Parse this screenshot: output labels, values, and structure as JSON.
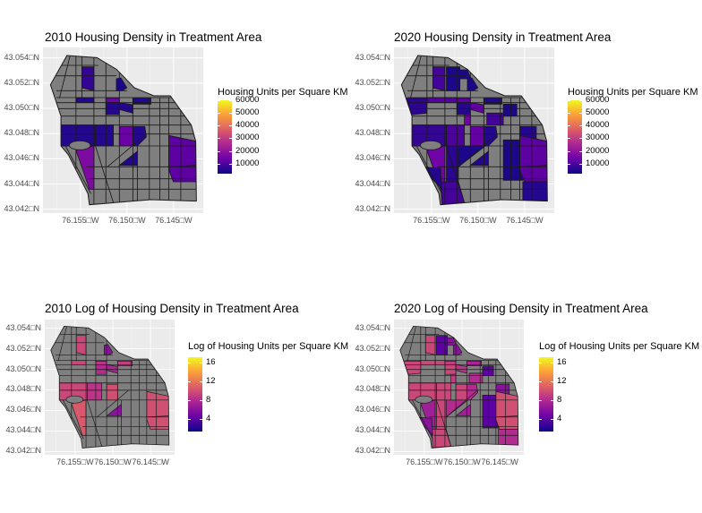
{
  "colors": {
    "region_fill_no_data": "#7f7f7f",
    "panel_background": "#ebebeb",
    "border": "#1a1a1a",
    "palette": "plasma",
    "palette_low": "#0d0887",
    "palette_high": "#f0f921"
  },
  "maps": [
    {
      "title": "2010 Housing Density in Treatment Area",
      "legend_title": "Housing Units per Square KM",
      "legend_ticks": [
        "60000",
        "50000",
        "40000",
        "30000",
        "20000",
        "10000"
      ],
      "legend_tick_values": [
        60000,
        50000,
        40000,
        30000,
        20000,
        10000
      ],
      "legend_range": [
        2100,
        60000
      ],
      "y_ticks": [
        "43.054□N",
        "43.052□N",
        "43.050□N",
        "43.048□N",
        "43.046□N",
        "43.044□N",
        "43.042□N"
      ],
      "x_ticks": [
        "76.155□W",
        "76.150□W",
        "76.145□W"
      ],
      "regions": {
        "r1": 7000,
        "r2": 5000,
        "r3": 15000,
        "r4": 5000,
        "r5": 5000,
        "r6": 5000,
        "r7": 4000,
        "r8a": 5000,
        "r8b": 5000,
        "r9": 14000,
        "r10": 5000,
        "r11": 5000,
        "r12": 17000,
        "r13": 12000
      }
    },
    {
      "title": "2020 Housing Density in Treatment Area",
      "legend_title": "Housing Units per Square KM",
      "legend_ticks": [
        "60000",
        "50000",
        "40000",
        "30000",
        "20000",
        "10000"
      ],
      "legend_tick_values": [
        60000,
        50000,
        40000,
        30000,
        20000,
        10000
      ],
      "legend_range": [
        2100,
        60000
      ],
      "y_ticks": [
        "43.054□N",
        "43.052□N",
        "43.050□N",
        "43.048□N",
        "43.046□N",
        "43.044□N",
        "43.042□N"
      ],
      "x_ticks": [
        "76.155□W",
        "76.150□W",
        "76.145□W"
      ],
      "regions": {
        "r1": 9000,
        "r14": 4000,
        "r15": 4000,
        "r16": 6000,
        "r2": 11000,
        "r17": 11000,
        "r3": 12000,
        "r4": 5000,
        "r5": 13000,
        "r6": 5000,
        "r18": 4000,
        "r19": 9000,
        "r8a": 7000,
        "r8b": 10000,
        "r21": 15000,
        "r9": 13000,
        "r10": 5000,
        "r22": 5000,
        "r12": 15000,
        "r23": 6000,
        "r24": 4000,
        "r25": 4000,
        "r13": 12000,
        "r26": 5000,
        "r27": 9000,
        "r28": 5000,
        "r7": 4000,
        "r11": 5000
      }
    },
    {
      "title": "2010 Log of Housing Density in Treatment Area",
      "legend_title": "Log of Housing Units per Square KM",
      "legend_ticks": [
        "16",
        "12",
        "8",
        "4"
      ],
      "legend_tick_values": [
        16,
        12,
        8,
        4
      ],
      "legend_range": [
        1.3,
        17.1
      ],
      "y_ticks": [
        "43.054□N",
        "43.052□N",
        "43.050□N",
        "43.048□N",
        "43.046□N",
        "43.044□N",
        "43.042□N"
      ],
      "x_ticks": [
        "76.155□W",
        "76.150□W",
        "76.145□W"
      ],
      "regions": {
        "r1": 9.5,
        "r2": 9.5,
        "r3": 8.5,
        "r4": 8,
        "r5": 7.5,
        "r6": 9,
        "r7": 6,
        "r8a": 9.5,
        "r8b": 8.5,
        "r9": 10,
        "r11": 6,
        "r12": 10.5,
        "r13": 10
      }
    },
    {
      "title": "2020 Log of Housing Density in Treatment Area",
      "legend_title": "Log of Housing Units per Square KM",
      "legend_ticks": [
        "16",
        "12",
        "8",
        "4"
      ],
      "legend_tick_values": [
        16,
        12,
        8,
        4
      ],
      "legend_range": [
        1.3,
        17.1
      ],
      "y_ticks": [
        "43.054□N",
        "43.052□N",
        "43.050□N",
        "43.048□N",
        "43.046□N",
        "43.044□N",
        "43.042□N"
      ],
      "x_ticks": [
        "76.155□W",
        "76.150□W",
        "76.145□W"
      ],
      "regions": {
        "r1": 9.5,
        "r14": 4,
        "r15": 6,
        "r16": 9.5,
        "r2": 9.5,
        "r17": 9.5,
        "r3": 9,
        "r4": 9.5,
        "r5": 8.5,
        "r6": 7.5,
        "r18": 4,
        "r19": 8,
        "r8a": 9.5,
        "r8b": 9.5,
        "r21": 9,
        "r9": 9.5,
        "r10": 8,
        "r22": 6,
        "r12": 7,
        "r23": 9.5,
        "r24": 8,
        "r25": 4,
        "r13": 10,
        "r26": 8,
        "r27": 9.5,
        "r28": 6,
        "r7": 6,
        "r11": 7
      }
    }
  ]
}
